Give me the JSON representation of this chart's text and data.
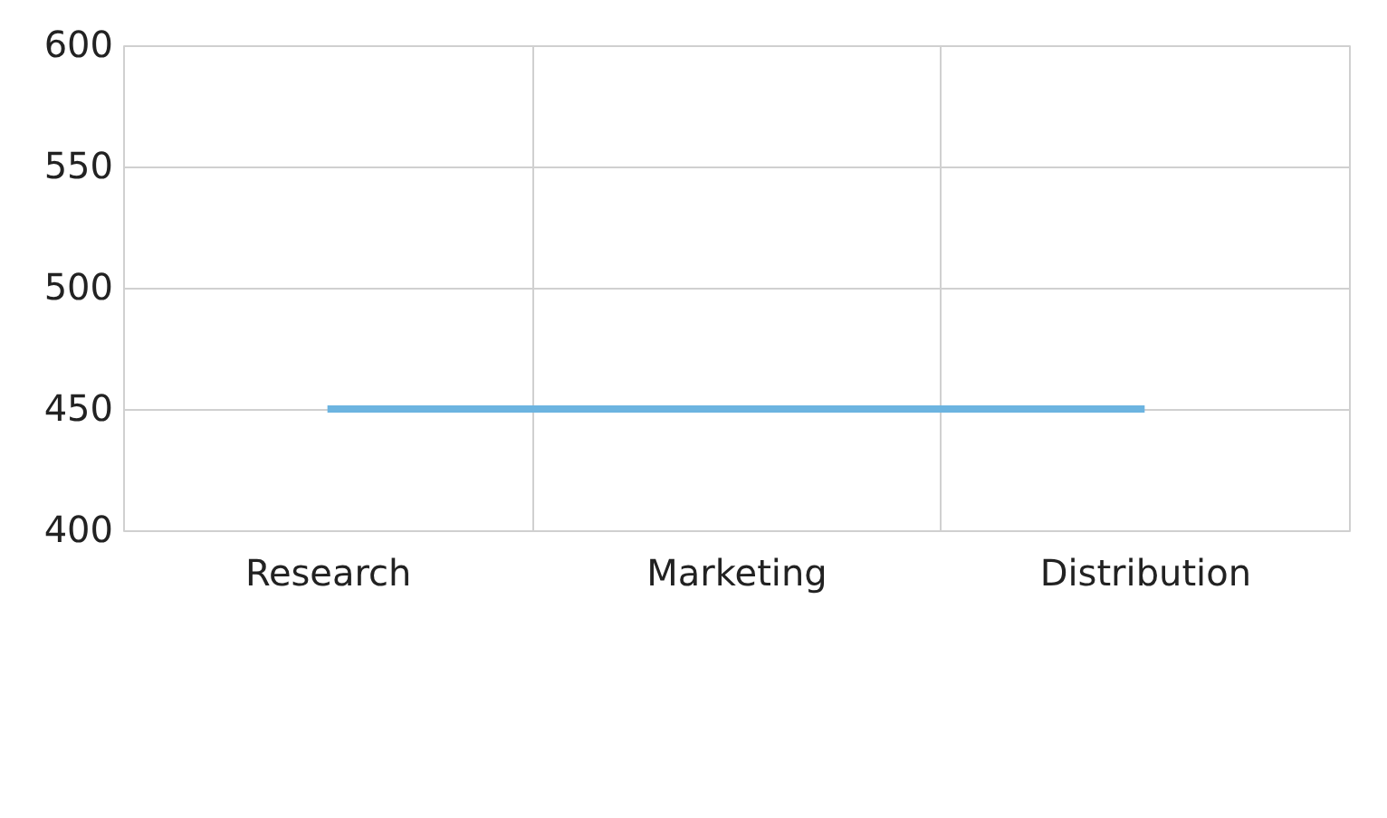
{
  "chart_data": {
    "type": "line",
    "categories": [
      "Research",
      "Marketing",
      "Distribution"
    ],
    "series": [
      {
        "color": "#6cb4e0",
        "values": [
          450,
          450,
          450
        ]
      }
    ],
    "ylim": [
      400,
      600
    ],
    "yticks": [
      400,
      450,
      500,
      550,
      600
    ],
    "grid": true,
    "marker": "none",
    "line_style": "solid"
  }
}
